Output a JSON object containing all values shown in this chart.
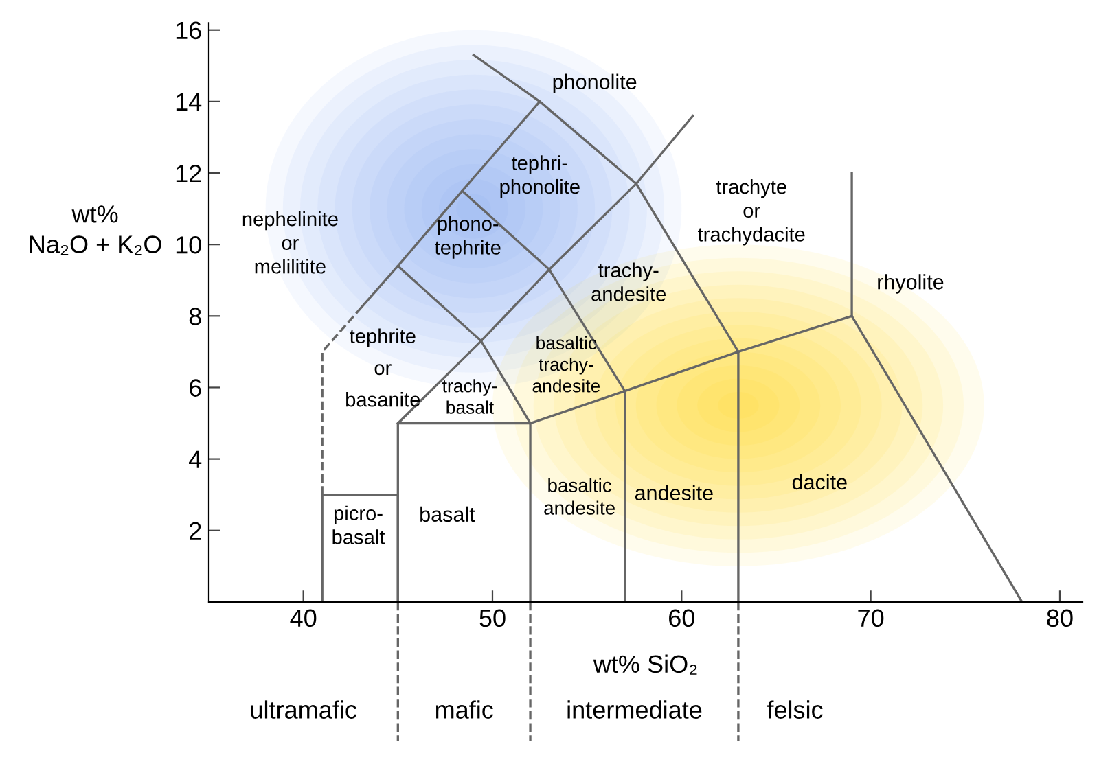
{
  "chart_data": {
    "type": "line",
    "xlabel": "wt% SiO₂",
    "ylabel": "wt%\nNa₂O + K₂O",
    "xlim": [
      35,
      81.2
    ],
    "ylim": [
      0,
      16.2
    ],
    "xticks": [
      40,
      50,
      60,
      70,
      80
    ],
    "yticks": [
      2,
      4,
      6,
      8,
      10,
      12,
      14,
      16
    ],
    "grid": false,
    "legend": false,
    "marker": "none",
    "series": [
      {
        "color": "#666666",
        "x": [
          41,
          41,
          45,
          45
        ],
        "values": [
          0,
          3,
          3,
          0
        ]
      },
      {
        "color": "#666666",
        "x": [
          45,
          45,
          52,
          52
        ],
        "values": [
          0,
          5,
          5,
          0
        ]
      },
      {
        "color": "#666666",
        "x": [
          52,
          57,
          57
        ],
        "values": [
          5,
          5.9,
          0
        ]
      },
      {
        "color": "#666666",
        "x": [
          57,
          63,
          63
        ],
        "values": [
          5.9,
          7,
          0
        ]
      },
      {
        "color": "#666666",
        "x": [
          63,
          69,
          78
        ],
        "values": [
          7,
          8,
          0
        ]
      },
      {
        "color": "#666666",
        "x": [
          69,
          69
        ],
        "values": [
          8,
          12
        ]
      },
      {
        "color": "#666666",
        "x": [
          45,
          49.4,
          52
        ],
        "values": [
          5,
          7.3,
          5
        ]
      },
      {
        "color": "#666666",
        "x": [
          49.4,
          53,
          57
        ],
        "values": [
          7.3,
          9.3,
          5.9
        ]
      },
      {
        "color": "#666666",
        "x": [
          53,
          57.6,
          63
        ],
        "values": [
          9.3,
          11.7,
          7
        ]
      },
      {
        "color": "#666666",
        "x": [
          43,
          45,
          49.4
        ],
        "values": [
          8.2,
          9.4,
          7.3
        ]
      },
      {
        "color": "#666666",
        "x": [
          45,
          48.4,
          53
        ],
        "values": [
          9.4,
          11.5,
          9.3
        ]
      },
      {
        "color": "#666666",
        "x": [
          49,
          52.5,
          57.6,
          60.6
        ],
        "values": [
          15.3,
          14,
          11.7,
          13.6
        ]
      },
      {
        "color": "#666666",
        "x": [
          52.5,
          48.4
        ],
        "values": [
          14,
          11.5
        ]
      },
      {
        "color": "#666666",
        "x": [
          41,
          41,
          43
        ],
        "values": [
          3,
          7,
          8.2
        ],
        "line_style": "dashed"
      }
    ],
    "annotations": [
      "ultramafic",
      "mafic",
      "intermediate",
      "felsic",
      "phonolite",
      "tephri-\nphonolite",
      "phono-\ntephrite",
      "trachy-\nandesite",
      "basaltic\ntrachy-\nandesite",
      "trachy-\nbasalt",
      "tephrite\nor\nbasanite",
      "nephelinite\nor\nmelilitite",
      "trachyte\nor\ntrachydacite",
      "rhyolite",
      "dacite",
      "andesite",
      "basaltic\nandesite",
      "basalt",
      "picro-\nbasalt"
    ]
  }
}
